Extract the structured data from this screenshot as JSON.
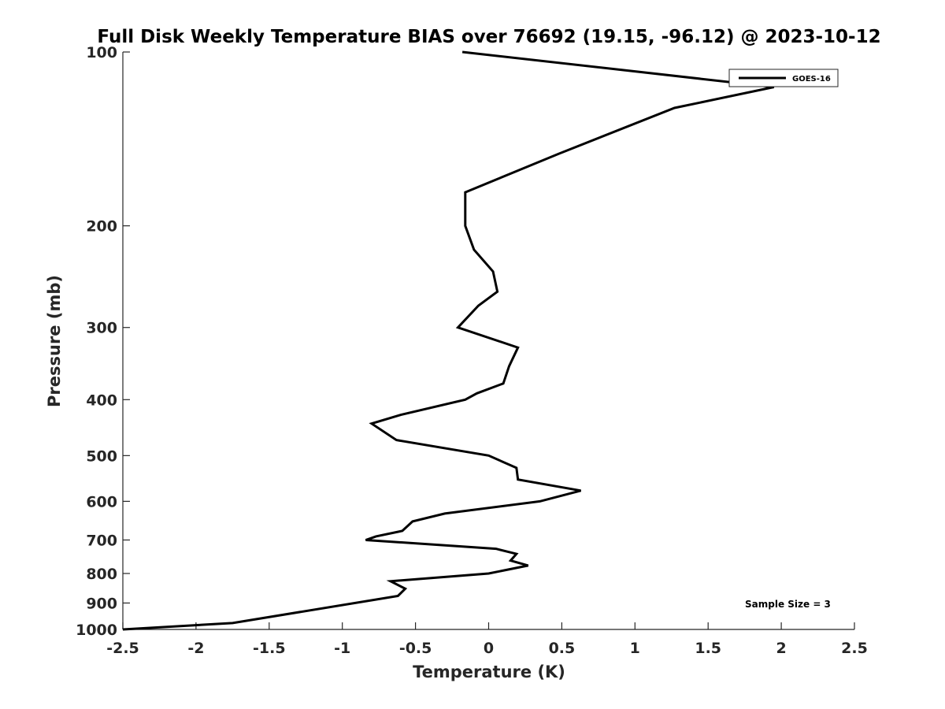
{
  "chart_data": {
    "type": "line",
    "title": "Full Disk Weekly Temperature BIAS over 76692 (19.15, -96.12) @ 2023-10-12",
    "xlabel": "Temperature (K)",
    "ylabel": "Pressure (mb)",
    "xlim": [
      -2.5,
      2.5
    ],
    "ylim": [
      1000,
      100
    ],
    "yscale": "log",
    "xticks": [
      -2.5,
      -2,
      -1.5,
      -1,
      -0.5,
      0,
      0.5,
      1,
      1.5,
      2,
      2.5
    ],
    "xtick_labels": [
      "-2.5",
      "-2",
      "-1.5",
      "-1",
      "-0.5",
      "0",
      "0.5",
      "1",
      "1.5",
      "2",
      "2.5"
    ],
    "yticks": [
      100,
      200,
      300,
      400,
      500,
      600,
      700,
      800,
      900,
      1000
    ],
    "ytick_labels": [
      "100",
      "200",
      "300",
      "400",
      "500",
      "600",
      "700",
      "800",
      "900",
      "1000"
    ],
    "grid": false,
    "legend_position": "top-right",
    "series": [
      {
        "name": "GOES-16",
        "color": "#000000",
        "x": [
          -0.18,
          1.95,
          1.27,
          0.48,
          -0.16,
          -0.16,
          -0.16,
          -0.1,
          0.03,
          0.06,
          -0.07,
          -0.21,
          0.2,
          0.14,
          0.1,
          -0.08,
          -0.16,
          -0.6,
          -0.8,
          -0.63,
          0.0,
          0.19,
          0.2,
          0.63,
          0.35,
          -0.3,
          -0.52,
          -0.59,
          -0.77,
          -0.84,
          0.05,
          0.19,
          0.15,
          0.27,
          0.0,
          -0.67,
          -0.57,
          -0.62,
          -1.75,
          -2.5
        ],
        "y": [
          100,
          115,
          125,
          150,
          175,
          180,
          200,
          220,
          240,
          260,
          275,
          300,
          325,
          350,
          375,
          390,
          400,
          425,
          440,
          470,
          500,
          525,
          550,
          575,
          600,
          630,
          650,
          675,
          690,
          700,
          725,
          740,
          760,
          775,
          800,
          825,
          850,
          875,
          975,
          1000
        ]
      }
    ],
    "annotation": "Sample Size = 3"
  }
}
